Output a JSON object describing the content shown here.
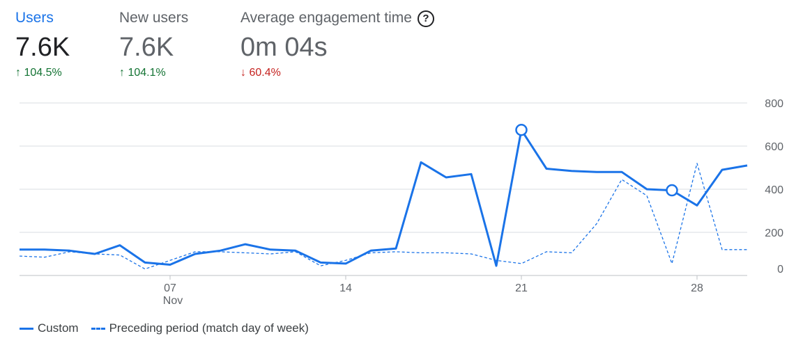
{
  "metrics": [
    {
      "label": "Users",
      "value": "7.6K",
      "arrow": "↑",
      "change": "104.5%"
    },
    {
      "label": "New users",
      "value": "7.6K",
      "arrow": "↑",
      "change": "104.1%"
    },
    {
      "label": "Average engagement time",
      "value": "0m 04s",
      "arrow": "↓",
      "change": "60.4%",
      "help_icon": "help-icon"
    }
  ],
  "colors": {
    "accent": "#1a73e8",
    "positive": "#137333",
    "negative": "#c5221f"
  },
  "chart_data": {
    "type": "line",
    "x_ticks": [
      {
        "day": 7,
        "label": "07",
        "sublabel": "Nov"
      },
      {
        "day": 14,
        "label": "14"
      },
      {
        "day": 21,
        "label": "21"
      },
      {
        "day": 28,
        "label": "28"
      }
    ],
    "y_ticks": [
      0,
      200,
      400,
      600,
      800
    ],
    "ylim": [
      0,
      800
    ],
    "xlim": [
      1,
      30
    ],
    "grid": true,
    "legend_placement": "bottom-left",
    "series": [
      {
        "name": "Custom",
        "style": "solid",
        "x": [
          1,
          2,
          3,
          4,
          5,
          6,
          7,
          8,
          9,
          10,
          11,
          12,
          13,
          14,
          15,
          16,
          17,
          18,
          19,
          20,
          21,
          22,
          23,
          24,
          25,
          26,
          27,
          28,
          29,
          30
        ],
        "values": [
          120,
          120,
          115,
          100,
          140,
          60,
          50,
          100,
          115,
          145,
          120,
          115,
          60,
          55,
          115,
          125,
          525,
          455,
          470,
          45,
          675,
          495,
          485,
          480,
          480,
          400,
          395,
          325,
          490,
          510
        ],
        "markers": [
          21,
          27
        ]
      },
      {
        "name": "Preceding period (match day of week)",
        "style": "dashed",
        "x": [
          1,
          2,
          3,
          4,
          5,
          6,
          7,
          8,
          9,
          10,
          11,
          12,
          13,
          14,
          15,
          16,
          17,
          18,
          19,
          20,
          21,
          22,
          23,
          24,
          25,
          26,
          27,
          28,
          29,
          30
        ],
        "values": [
          90,
          85,
          110,
          100,
          95,
          30,
          70,
          110,
          110,
          105,
          100,
          110,
          45,
          70,
          105,
          110,
          105,
          105,
          100,
          70,
          55,
          110,
          105,
          240,
          445,
          370,
          55,
          520,
          120,
          120
        ]
      }
    ]
  }
}
